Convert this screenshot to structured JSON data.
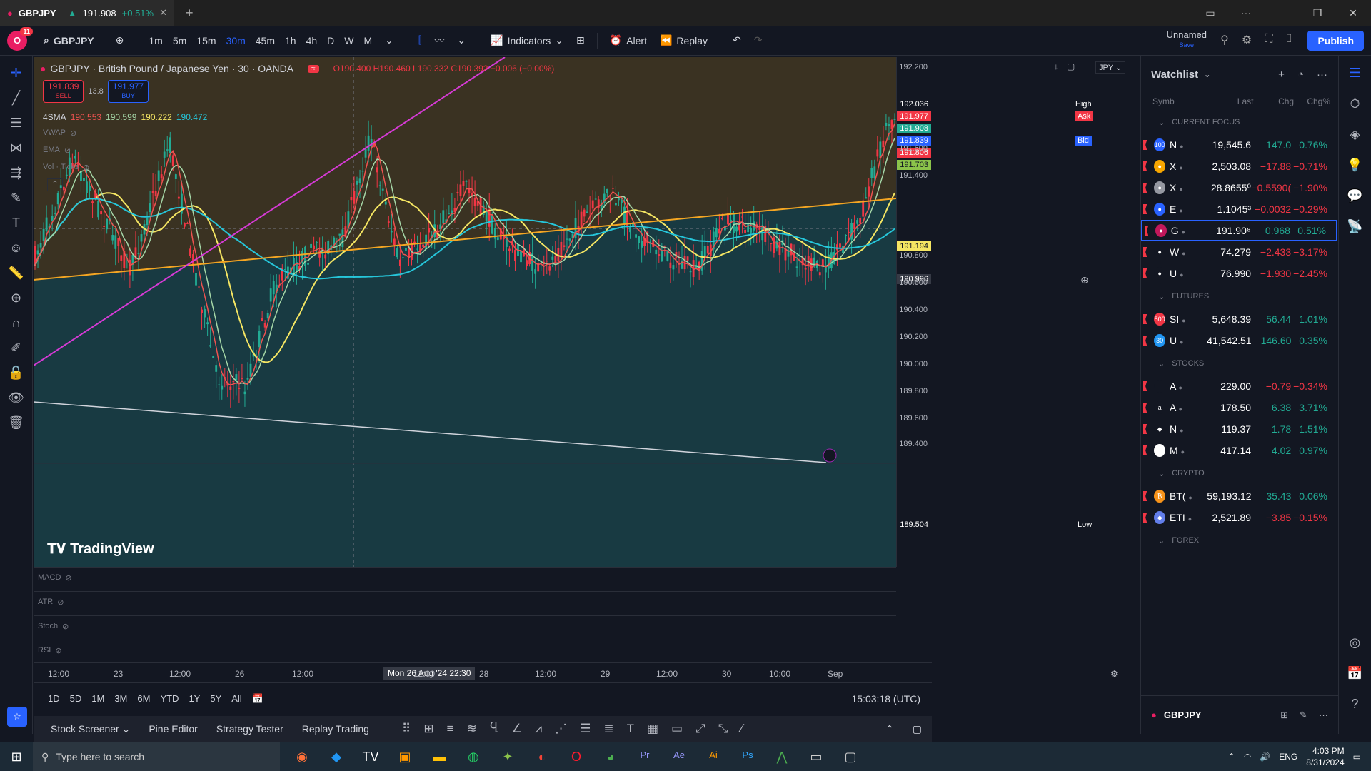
{
  "browser": {
    "tab_title": "GBPJPY",
    "tab_price": "191.908",
    "tab_change": "+0.51%",
    "window_controls": [
      "—",
      "❐",
      "✕"
    ]
  },
  "toolbar": {
    "notifications": "11",
    "symbol": "GBPJPY",
    "intervals": [
      "1m",
      "5m",
      "15m",
      "30m",
      "45m",
      "1h",
      "4h",
      "D",
      "W",
      "M"
    ],
    "active_interval": "30m",
    "indicators_label": "Indicators",
    "alert_label": "Alert",
    "replay_label": "Replay",
    "layout_name": "Unnamed",
    "save_label": "Save",
    "publish_label": "Publish"
  },
  "legend": {
    "title": "GBPJPY · British Pound / Japanese Yen · 30 · OANDA",
    "open": "O190.400",
    "high": "H190.460",
    "low": "L190.332",
    "close": "C190.392",
    "change": "−0.006 (−0.00%)",
    "sell_price": "191.839",
    "sell_label": "SELL",
    "spread": "13.8",
    "buy_price": "191.977",
    "buy_label": "BUY",
    "sma_label": "4SMA",
    "sma_values": [
      "190.553",
      "190.599",
      "190.222",
      "190.472"
    ],
    "hidden_indicators": [
      "VWAP",
      "EMA",
      "Vol · Ticks"
    ],
    "currency": "JPY"
  },
  "price_scale": {
    "labels": [
      "192.200",
      "191.600",
      "191.400",
      "190.800",
      "190.600",
      "190.400",
      "190.200",
      "190.000",
      "189.800",
      "189.600",
      "189.400"
    ],
    "tags": {
      "high_label": "High",
      "high": "192.036",
      "ask_label": "Ask",
      "ask": "191.977",
      "last": "191.908",
      "bid_label": "Bid",
      "bid": "191.839",
      "t1": "191.806",
      "t2": "191.703",
      "line": "191.194",
      "crosshair": "190.996",
      "low_label": "Low",
      "low": "189.504"
    }
  },
  "panes": [
    "MACD",
    "ATR",
    "Stoch",
    "RSI"
  ],
  "time_scale": {
    "labels": [
      "12:00",
      "23",
      "12:00",
      "26",
      "12:00",
      "12:00",
      "28",
      "12:00",
      "29",
      "12:00",
      "30",
      "10:00",
      "Sep"
    ],
    "crosshair": "Mon 26 Aug '24   22:30"
  },
  "ranges": [
    "1D",
    "5D",
    "1M",
    "3M",
    "6M",
    "YTD",
    "1Y",
    "5Y",
    "All"
  ],
  "clock": "15:03:18 (UTC)",
  "watermark": "TradingView",
  "bottom": [
    "Stock Screener",
    "Pine Editor",
    "Strategy Tester",
    "Replay Trading"
  ],
  "watchlist": {
    "title": "Watchlist",
    "columns": [
      "Symb",
      "Last",
      "Chg",
      "Chg%"
    ],
    "sections": [
      {
        "name": "CURRENT FOCUS",
        "rows": [
          {
            "s": "N",
            "icon": "100",
            "bg": "#2962ff",
            "last": "19,545.6",
            "chg": "147.0",
            "pct": "0.76%",
            "up": true
          },
          {
            "s": "X",
            "icon": "●",
            "bg": "#f7a600",
            "last": "2,503.08",
            "chg": "−17.88",
            "pct": "−0.71%",
            "up": false
          },
          {
            "s": "X",
            "icon": "●",
            "bg": "#9598a1",
            "last": "28.8655⁰",
            "chg": "−0.5590(",
            "pct": "−1.90%",
            "up": false
          },
          {
            "s": "E",
            "icon": "●",
            "bg": "#2962ff",
            "last": "1.1045³",
            "chg": "−0.0032",
            "pct": "−0.29%",
            "up": false
          },
          {
            "s": "G",
            "icon": "●",
            "bg": "#c2185b",
            "last": "191.90⁸",
            "chg": "0.968",
            "pct": "0.51%",
            "up": true,
            "sel": true
          },
          {
            "s": "W",
            "icon": "●",
            "bg": "#131722",
            "last": "74.279",
            "chg": "−2.433",
            "pct": "−3.17%",
            "up": false
          },
          {
            "s": "U",
            "icon": "●",
            "bg": "#131722",
            "last": "76.990",
            "chg": "−1.930",
            "pct": "−2.45%",
            "up": false
          }
        ]
      },
      {
        "name": "FUTURES",
        "rows": [
          {
            "s": "SI",
            "icon": "500",
            "bg": "#f23645",
            "last": "5,648.39",
            "chg": "56.44",
            "pct": "1.01%",
            "up": true
          },
          {
            "s": "U",
            "icon": "30",
            "bg": "#2196f3",
            "last": "41,542.51",
            "chg": "146.60",
            "pct": "0.35%",
            "up": true
          }
        ]
      },
      {
        "name": "STOCKS",
        "rows": [
          {
            "s": "A",
            "icon": "",
            "bg": "#131722",
            "last": "229.00",
            "chg": "−0.79",
            "pct": "−0.34%",
            "up": false
          },
          {
            "s": "A",
            "icon": "a",
            "bg": "#131722",
            "last": "178.50",
            "chg": "6.38",
            "pct": "3.71%",
            "up": true
          },
          {
            "s": "N",
            "icon": "◆",
            "bg": "#131722",
            "last": "119.37",
            "chg": "1.78",
            "pct": "1.51%",
            "up": true
          },
          {
            "s": "M",
            "icon": "■",
            "bg": "#fff",
            "last": "417.14",
            "chg": "4.02",
            "pct": "0.97%",
            "up": true
          }
        ]
      },
      {
        "name": "CRYPTO",
        "rows": [
          {
            "s": "BT(",
            "icon": "₿",
            "bg": "#f7931a",
            "last": "59,193.12",
            "chg": "35.43",
            "pct": "0.06%",
            "up": true
          },
          {
            "s": "ETI",
            "icon": "◆",
            "bg": "#627eea",
            "last": "2,521.89",
            "chg": "−3.85",
            "pct": "−0.15%",
            "up": false
          }
        ]
      },
      {
        "name": "FOREX",
        "rows": []
      }
    ],
    "footer_symbol": "GBPJPY"
  },
  "taskbar": {
    "search_placeholder": "Type here to search",
    "lang": "ENG",
    "time": "4:03 PM",
    "date": "8/31/2024"
  },
  "colors": {
    "up": "#22ab94",
    "down": "#f23645",
    "accent": "#2962ff",
    "sma_yellow": "#f5e663",
    "sma_cyan": "#26c6da",
    "trend_orange": "#f5a623",
    "trend_magenta": "#d63ad6"
  }
}
